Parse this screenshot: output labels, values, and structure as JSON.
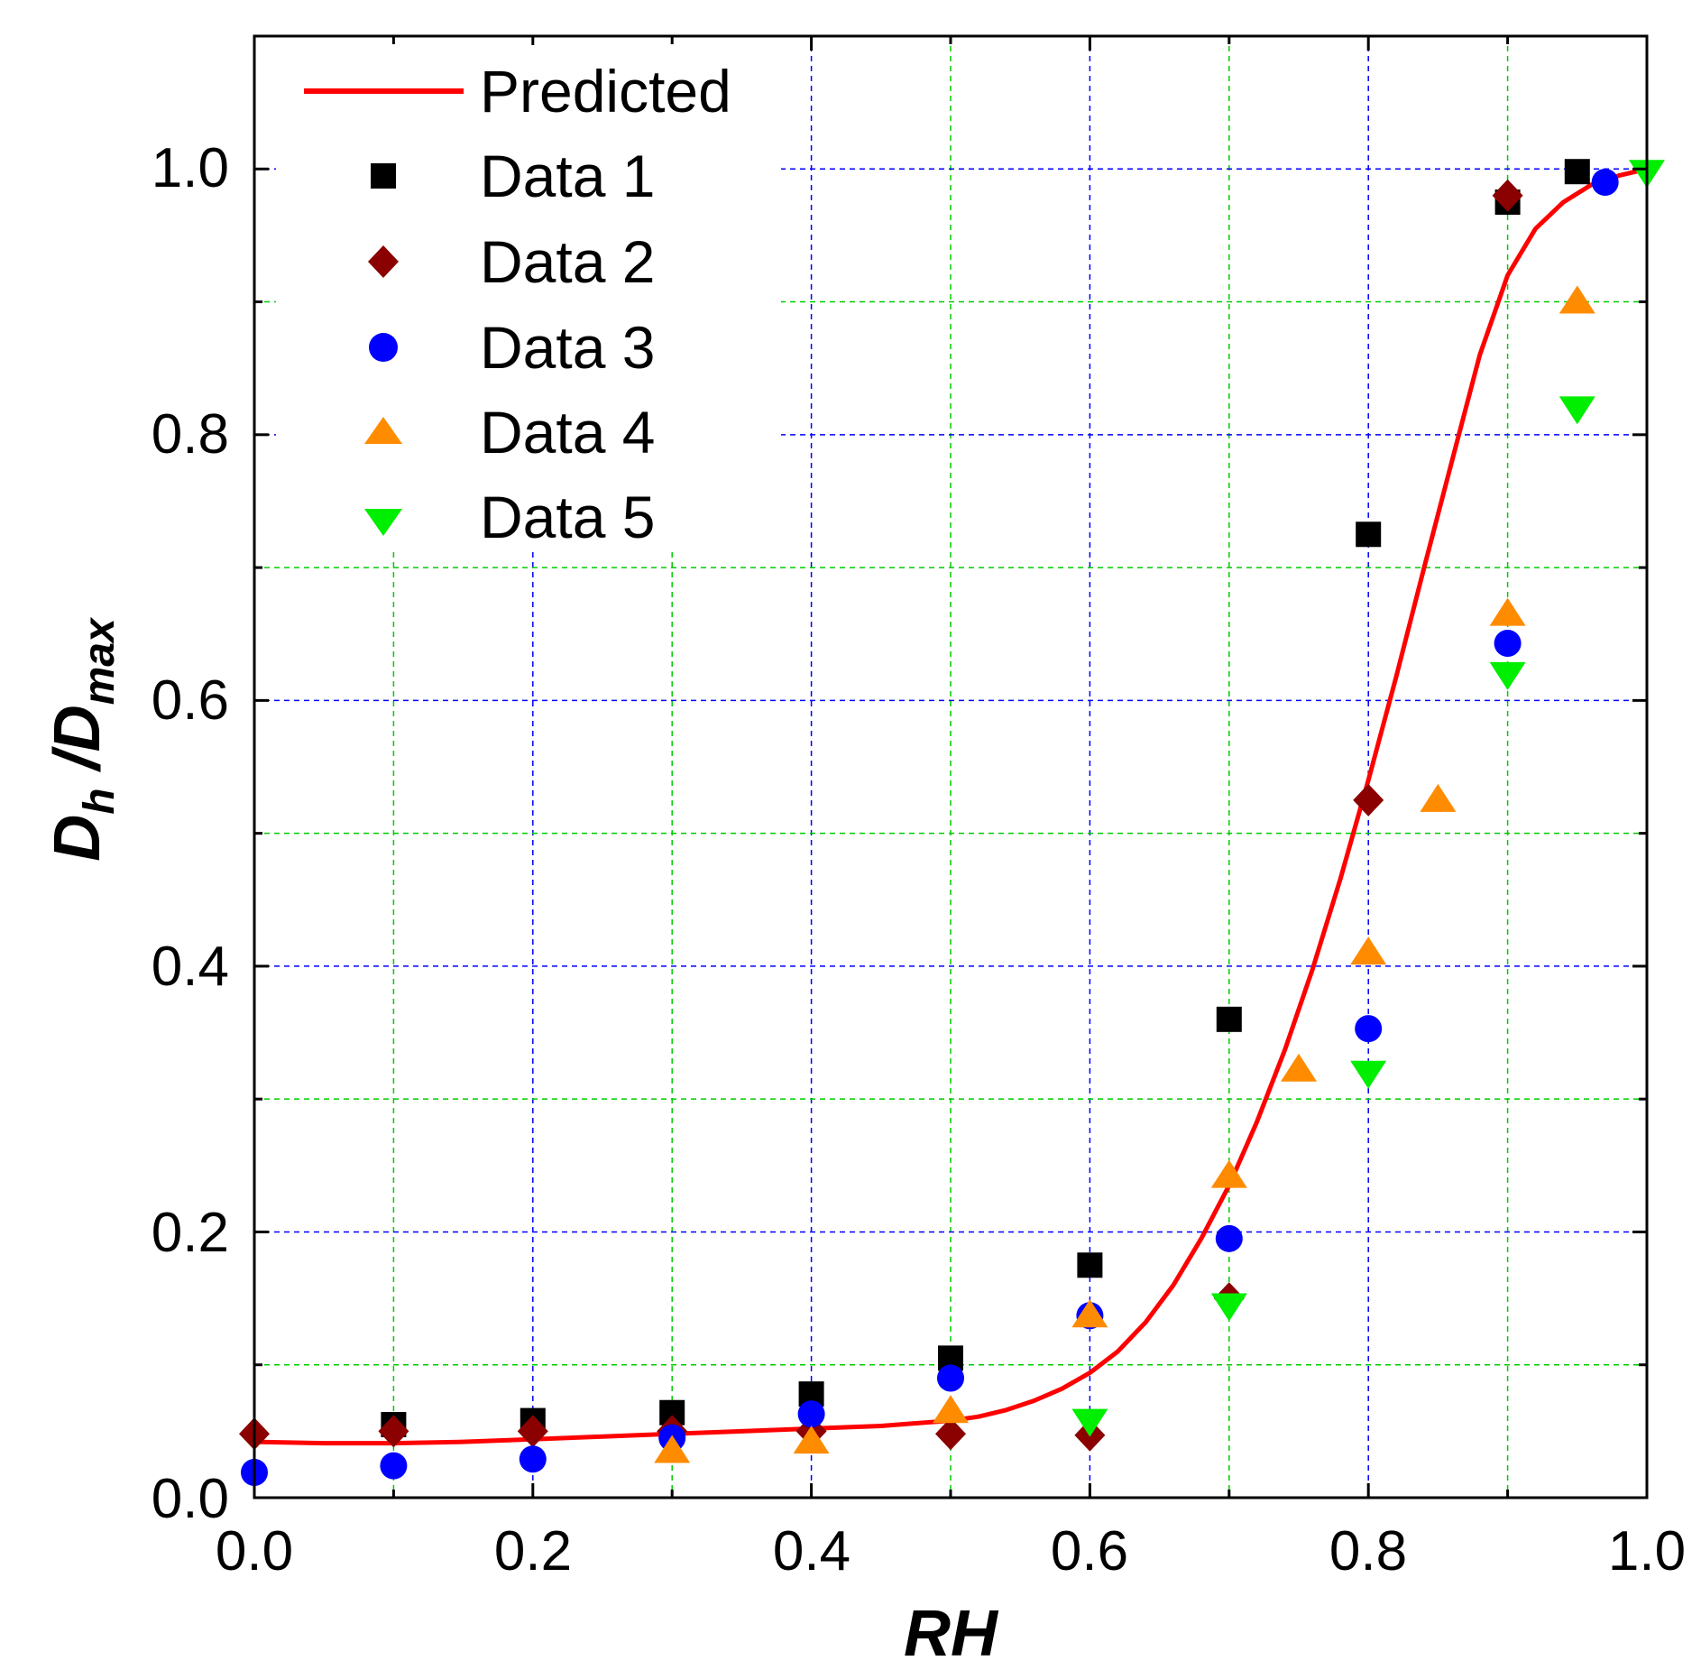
{
  "chart_data": {
    "type": "scatter",
    "title": "",
    "xlabel": "RH",
    "ylabel_main": "D",
    "ylabel_sub1": "h",
    "ylabel_sep": " /D",
    "ylabel_sub2": "max",
    "xlim": [
      0.0,
      1.0
    ],
    "ylim": [
      0.0,
      1.1
    ],
    "xticks": [
      "0.0",
      "0.2",
      "0.4",
      "0.6",
      "0.8",
      "1.0"
    ],
    "yticks": [
      "0.0",
      "0.2",
      "0.4",
      "0.6",
      "0.8",
      "1.0"
    ],
    "grid": true,
    "legend_position": "top-left",
    "colors": {
      "predicted": "#ff0000",
      "grid_major": "#0000ff",
      "grid_minor": "#00cc00",
      "axis": "#000000"
    },
    "line": {
      "name": "Predicted",
      "x": [
        0.0,
        0.05,
        0.1,
        0.15,
        0.2,
        0.25,
        0.3,
        0.35,
        0.4,
        0.45,
        0.5,
        0.52,
        0.54,
        0.56,
        0.58,
        0.6,
        0.62,
        0.64,
        0.66,
        0.68,
        0.7,
        0.72,
        0.74,
        0.76,
        0.78,
        0.8,
        0.82,
        0.84,
        0.86,
        0.88,
        0.9,
        0.92,
        0.94,
        0.96,
        0.98,
        1.0
      ],
      "y": [
        0.042,
        0.041,
        0.041,
        0.042,
        0.044,
        0.046,
        0.048,
        0.05,
        0.052,
        0.054,
        0.058,
        0.061,
        0.066,
        0.073,
        0.082,
        0.094,
        0.11,
        0.132,
        0.16,
        0.195,
        0.235,
        0.283,
        0.337,
        0.398,
        0.466,
        0.54,
        0.618,
        0.7,
        0.78,
        0.86,
        0.92,
        0.955,
        0.975,
        0.988,
        0.995,
        1.0
      ]
    },
    "series": [
      {
        "name": "Data 1",
        "marker": "square",
        "color": "#000000",
        "x": [
          0.1,
          0.2,
          0.3,
          0.4,
          0.5,
          0.6,
          0.7,
          0.8,
          0.9,
          0.95
        ],
        "y": [
          0.055,
          0.058,
          0.064,
          0.078,
          0.105,
          0.175,
          0.36,
          0.725,
          0.975,
          0.998
        ]
      },
      {
        "name": "Data 2",
        "marker": "diamond",
        "color": "#8b0000",
        "x": [
          0.0,
          0.1,
          0.2,
          0.3,
          0.4,
          0.5,
          0.6,
          0.7,
          0.8,
          0.9
        ],
        "y": [
          0.048,
          0.05,
          0.05,
          0.05,
          0.05,
          0.048,
          0.047,
          0.15,
          0.525,
          0.98
        ]
      },
      {
        "name": "Data 3",
        "marker": "circle",
        "color": "#0000ff",
        "x": [
          0.0,
          0.1,
          0.2,
          0.3,
          0.4,
          0.5,
          0.6,
          0.7,
          0.8,
          0.9,
          0.97
        ],
        "y": [
          0.019,
          0.024,
          0.029,
          0.045,
          0.063,
          0.09,
          0.137,
          0.195,
          0.353,
          0.643,
          0.99
        ]
      },
      {
        "name": "Data 4",
        "marker": "triangle-up",
        "color": "#ff8c00",
        "x": [
          0.3,
          0.4,
          0.5,
          0.6,
          0.7,
          0.75,
          0.8,
          0.85,
          0.9,
          0.95
        ],
        "y": [
          0.035,
          0.042,
          0.065,
          0.137,
          0.242,
          0.322,
          0.41,
          0.525,
          0.665,
          0.9
        ]
      },
      {
        "name": "Data 5",
        "marker": "triangle-down",
        "color": "#00ee00",
        "x": [
          0.6,
          0.7,
          0.8,
          0.9,
          0.95,
          1.0
        ],
        "y": [
          0.058,
          0.145,
          0.32,
          0.62,
          0.82,
          0.998
        ]
      }
    ]
  }
}
